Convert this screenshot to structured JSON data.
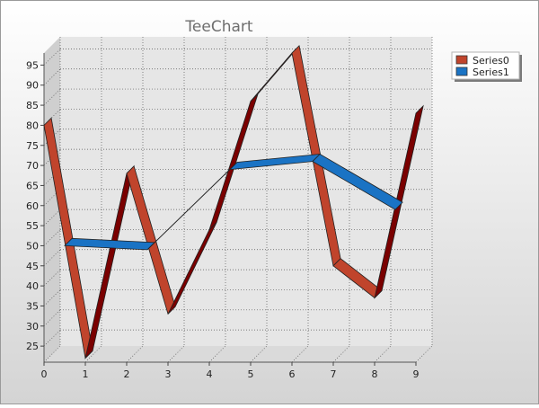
{
  "chart_data": {
    "type": "line",
    "title": "TeeChart",
    "x": [
      0,
      1,
      2,
      3,
      4,
      5,
      6,
      7,
      8,
      9
    ],
    "xlim": [
      0,
      9
    ],
    "ylim": [
      21,
      98
    ],
    "x_ticks": [
      "0",
      "1",
      "2",
      "3",
      "4",
      "5",
      "6",
      "7",
      "8",
      "9"
    ],
    "y_ticks": [
      "25",
      "30",
      "35",
      "40",
      "45",
      "50",
      "55",
      "60",
      "65",
      "70",
      "75",
      "80",
      "85",
      "90",
      "95"
    ],
    "grid": true,
    "legend_position": "top-right",
    "series": [
      {
        "name": "Series0",
        "color": "#c0442c",
        "dark_color": "#7a0000",
        "points": [
          [
            0,
            80
          ],
          [
            1,
            22
          ],
          [
            2,
            68
          ],
          [
            3,
            33
          ],
          [
            4,
            54
          ],
          [
            5,
            86
          ],
          [
            6,
            98
          ],
          [
            7,
            45
          ],
          [
            8,
            37
          ],
          [
            9,
            83
          ]
        ]
      },
      {
        "name": "Series1",
        "color": "#1a73c4",
        "dark_color": "#0a3f78",
        "points": [
          [
            0.5,
            50
          ],
          [
            2.5,
            49
          ],
          [
            4.5,
            69
          ],
          [
            6.5,
            71
          ],
          [
            8.5,
            59
          ]
        ]
      }
    ]
  }
}
